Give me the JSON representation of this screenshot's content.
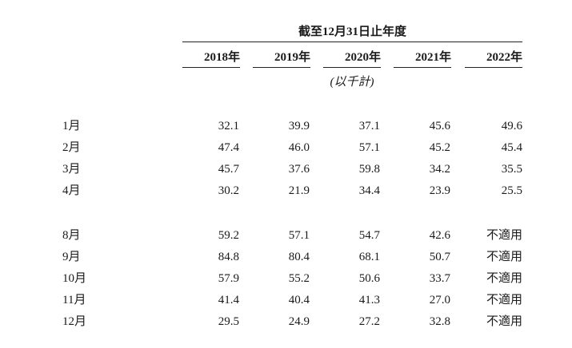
{
  "header": {
    "group_title": "截至12月31日止年度",
    "years": [
      "2018年",
      "2019年",
      "2020年",
      "2021年",
      "2022年"
    ],
    "unit_note": "(以千計)"
  },
  "rows": [
    {
      "month": "1月",
      "values": [
        "32.1",
        "39.9",
        "37.1",
        "45.6",
        "49.6"
      ]
    },
    {
      "month": "2月",
      "values": [
        "47.4",
        "46.0",
        "57.1",
        "45.2",
        "45.4"
      ]
    },
    {
      "month": "3月",
      "values": [
        "45.7",
        "37.6",
        "59.8",
        "34.2",
        "35.5"
      ]
    },
    {
      "month": "4月",
      "values": [
        "30.2",
        "21.9",
        "34.4",
        "23.9",
        "25.5"
      ]
    },
    {
      "month": "8月",
      "values": [
        "59.2",
        "57.1",
        "54.7",
        "42.6",
        "不適用"
      ]
    },
    {
      "month": "9月",
      "values": [
        "84.8",
        "80.4",
        "68.1",
        "50.7",
        "不適用"
      ]
    },
    {
      "month": "10月",
      "values": [
        "57.9",
        "55.2",
        "50.6",
        "33.7",
        "不適用"
      ]
    },
    {
      "month": "11月",
      "values": [
        "41.4",
        "40.4",
        "41.3",
        "27.0",
        "不適用"
      ]
    },
    {
      "month": "12月",
      "values": [
        "29.5",
        "24.9",
        "27.2",
        "32.8",
        "不適用"
      ]
    }
  ]
}
